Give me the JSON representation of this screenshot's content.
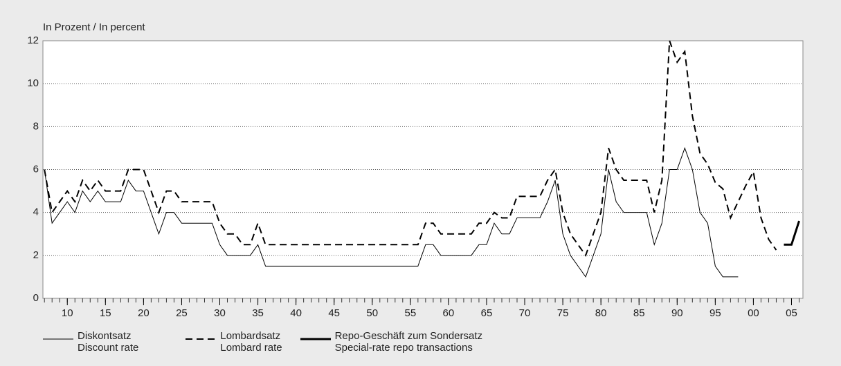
{
  "chart_data": {
    "type": "line",
    "ylabel": "In Prozent / In percent",
    "x": [
      1907,
      1908,
      1909,
      1910,
      1911,
      1912,
      1913,
      1914,
      1915,
      1916,
      1917,
      1918,
      1919,
      1920,
      1921,
      1922,
      1923,
      1924,
      1925,
      1926,
      1927,
      1928,
      1929,
      1930,
      1931,
      1932,
      1933,
      1934,
      1935,
      1936,
      1937,
      1938,
      1939,
      1940,
      1941,
      1942,
      1943,
      1944,
      1945,
      1946,
      1947,
      1948,
      1949,
      1950,
      1951,
      1952,
      1953,
      1954,
      1955,
      1956,
      1957,
      1958,
      1959,
      1960,
      1961,
      1962,
      1963,
      1964,
      1965,
      1966,
      1967,
      1968,
      1969,
      1970,
      1971,
      1972,
      1973,
      1974,
      1975,
      1976,
      1977,
      1978,
      1979,
      1980,
      1981,
      1982,
      1983,
      1984,
      1985,
      1986,
      1987,
      1988,
      1989,
      1990,
      1991,
      1992,
      1993,
      1994,
      1995,
      1996,
      1997,
      1998,
      1999,
      2000,
      2001,
      2002,
      2003,
      2004,
      2005,
      2006
    ],
    "series": [
      {
        "name": "Diskontsatz\nDiscount rate",
        "color": "#000000",
        "line_style": "solid",
        "line_width": 1,
        "values": [
          6,
          3.5,
          4,
          4.5,
          4,
          5,
          4.5,
          5,
          4.5,
          4.5,
          4.5,
          5.5,
          5,
          5,
          4,
          3,
          4,
          4,
          3.5,
          3.5,
          3.5,
          3.5,
          3.5,
          2.5,
          2,
          2,
          2,
          2,
          2.5,
          1.5,
          1.5,
          1.5,
          1.5,
          1.5,
          1.5,
          1.5,
          1.5,
          1.5,
          1.5,
          1.5,
          1.5,
          1.5,
          1.5,
          1.5,
          1.5,
          1.5,
          1.5,
          1.5,
          1.5,
          1.5,
          2.5,
          2.5,
          2,
          2,
          2,
          2,
          2,
          2.5,
          2.5,
          3.5,
          3,
          3,
          3.75,
          3.75,
          3.75,
          3.75,
          4.5,
          5.5,
          3,
          2,
          1.5,
          1,
          2,
          3,
          6,
          4.5,
          4,
          4,
          4,
          4,
          2.5,
          3.5,
          6,
          6,
          7,
          6,
          4,
          3.5,
          1.5,
          1,
          1,
          1,
          null,
          null,
          null,
          null,
          null,
          null,
          null,
          null
        ]
      },
      {
        "name": "Lombardsatz\nLombard rate",
        "color": "#000000",
        "line_style": "dashed",
        "line_width": 2,
        "values": [
          6,
          4,
          4.5,
          5,
          4.5,
          5.5,
          5,
          5.5,
          5,
          5,
          5,
          6,
          6,
          6,
          5,
          4,
          5,
          5,
          4.5,
          4.5,
          4.5,
          4.5,
          4.5,
          3.5,
          3,
          3,
          2.5,
          2.5,
          3.5,
          2.5,
          2.5,
          2.5,
          2.5,
          2.5,
          2.5,
          2.5,
          2.5,
          2.5,
          2.5,
          2.5,
          2.5,
          2.5,
          2.5,
          2.5,
          2.5,
          2.5,
          2.5,
          2.5,
          2.5,
          2.5,
          3.5,
          3.5,
          3,
          3,
          3,
          3,
          3,
          3.5,
          3.5,
          4,
          3.75,
          3.75,
          4.75,
          4.75,
          4.75,
          4.75,
          5.5,
          6,
          4,
          3,
          2.5,
          2,
          3,
          4,
          7,
          6,
          5.5,
          5.5,
          5.5,
          5.5,
          4,
          5.5,
          12,
          11,
          11.5,
          8.5,
          6.75,
          6.25,
          5.4,
          5.1,
          3.75,
          4.5,
          5.25,
          5.9,
          3.75,
          2.75,
          2.25,
          null,
          null,
          null
        ]
      },
      {
        "name": "Repo-Geschäft zum Sondersatz\nSpecial-rate repo transactions",
        "color": "#000000",
        "line_style": "solid",
        "line_width": 3,
        "values": [
          null,
          null,
          null,
          null,
          null,
          null,
          null,
          null,
          null,
          null,
          null,
          null,
          null,
          null,
          null,
          null,
          null,
          null,
          null,
          null,
          null,
          null,
          null,
          null,
          null,
          null,
          null,
          null,
          null,
          null,
          null,
          null,
          null,
          null,
          null,
          null,
          null,
          null,
          null,
          null,
          null,
          null,
          null,
          null,
          null,
          null,
          null,
          null,
          null,
          null,
          null,
          null,
          null,
          null,
          null,
          null,
          null,
          null,
          null,
          null,
          null,
          null,
          null,
          null,
          null,
          null,
          null,
          null,
          null,
          null,
          null,
          null,
          null,
          null,
          null,
          null,
          null,
          null,
          null,
          null,
          null,
          null,
          null,
          null,
          null,
          null,
          null,
          null,
          null,
          null,
          null,
          null,
          null,
          null,
          null,
          null,
          null,
          2.5,
          2.5,
          3.6
        ]
      }
    ],
    "xlim": [
      1906.8,
      2006.5
    ],
    "xticks": [
      {
        "value": 1910,
        "label": "10"
      },
      {
        "value": 1915,
        "label": "15"
      },
      {
        "value": 1920,
        "label": "20"
      },
      {
        "value": 1925,
        "label": "25"
      },
      {
        "value": 1930,
        "label": "30"
      },
      {
        "value": 1935,
        "label": "35"
      },
      {
        "value": 1940,
        "label": "40"
      },
      {
        "value": 1945,
        "label": "45"
      },
      {
        "value": 1950,
        "label": "50"
      },
      {
        "value": 1955,
        "label": "55"
      },
      {
        "value": 1960,
        "label": "60"
      },
      {
        "value": 1965,
        "label": "65"
      },
      {
        "value": 1970,
        "label": "70"
      },
      {
        "value": 1975,
        "label": "75"
      },
      {
        "value": 1980,
        "label": "80"
      },
      {
        "value": 1985,
        "label": "85"
      },
      {
        "value": 1990,
        "label": "90"
      },
      {
        "value": 1995,
        "label": "95"
      },
      {
        "value": 2000,
        "label": "00"
      },
      {
        "value": 2005,
        "label": "05"
      }
    ],
    "ylim": [
      0,
      12
    ],
    "yticks": [
      0,
      2,
      4,
      6,
      8,
      10,
      12
    ],
    "grid": true
  }
}
